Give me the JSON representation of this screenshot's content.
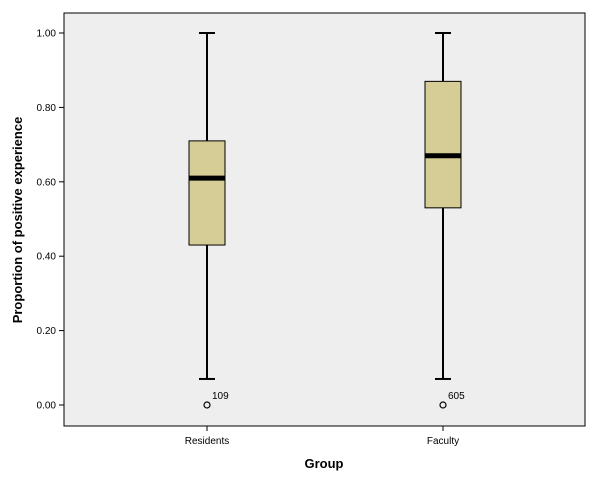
{
  "chart_data": {
    "type": "box",
    "xlabel": "Group",
    "ylabel": "Proportion of positive experience",
    "ylim": [
      -0.06,
      1.07
    ],
    "yticks": [
      0.0,
      0.2,
      0.4,
      0.6,
      0.8,
      1.0
    ],
    "ytick_labels": [
      "0.00",
      "0.20",
      "0.40",
      "0.60",
      "0.80",
      "1.00"
    ],
    "categories": [
      "Residents",
      "Faculty"
    ],
    "boxes": [
      {
        "name": "Residents",
        "min": 0.07,
        "q1": 0.43,
        "median": 0.61,
        "q3": 0.71,
        "max": 1.0,
        "outliers": [
          {
            "value": 0.0,
            "label": "109"
          }
        ]
      },
      {
        "name": "Faculty",
        "min": 0.07,
        "q1": 0.53,
        "median": 0.67,
        "q3": 0.87,
        "max": 1.0,
        "outliers": [
          {
            "value": 0.0,
            "label": "605"
          }
        ]
      }
    ],
    "colors": {
      "plot_bg": "#eeeeee",
      "box_fill": "#d5cc96",
      "line": "#000000"
    },
    "grid": false
  }
}
